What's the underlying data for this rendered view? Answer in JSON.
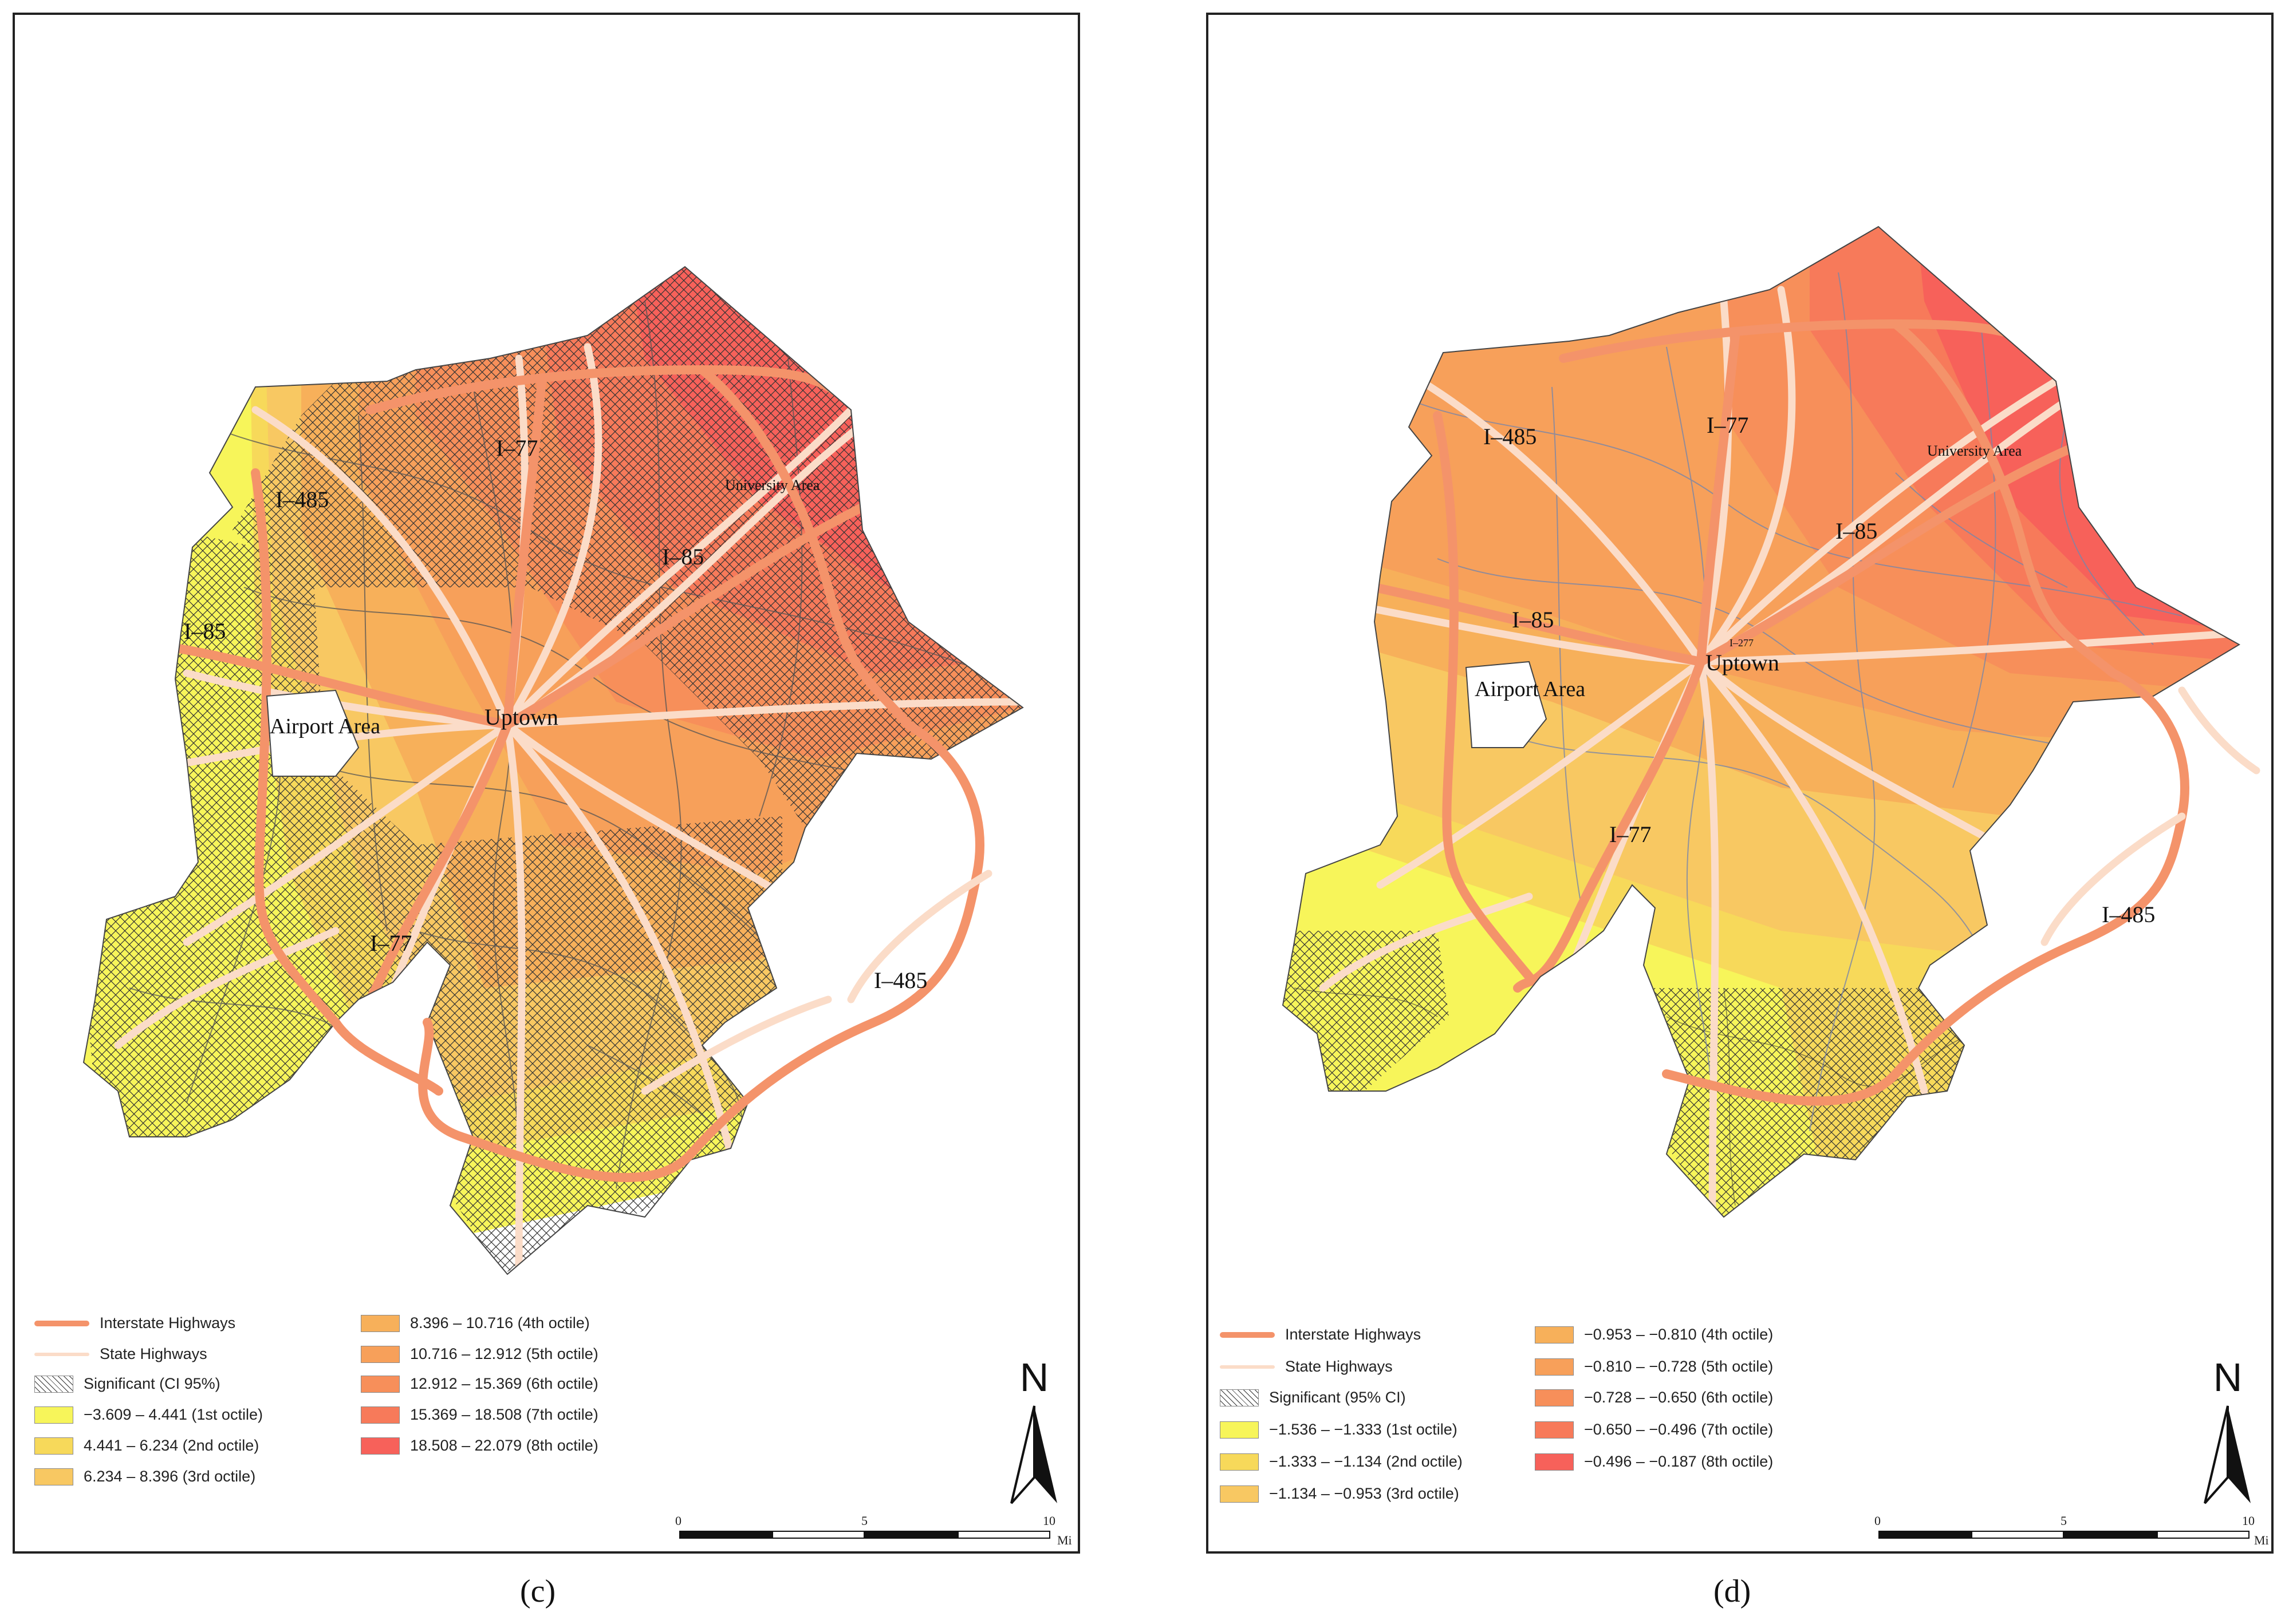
{
  "panels": [
    {
      "caption": "(c)",
      "labels": {
        "i77_top": "I–77",
        "i485_top": "I–485",
        "i85_mid": "I–85",
        "i85_west": "I–85",
        "university": "University Area",
        "uptown": "Uptown",
        "airport": "Airport Area",
        "i77_south": "I–77",
        "i485_south": "I–485"
      },
      "legend": {
        "interstate": "Interstate Highways",
        "state": "State Highways",
        "significant": "Significant (CI 95%)",
        "classes": [
          "−3.609 – 4.441 (1st octile)",
          "4.441 – 6.234 (2nd octile)",
          "6.234 – 8.396 (3rd octile)",
          "8.396 – 10.716 (4th octile)",
          "10.716 – 12.912 (5th octile)",
          "12.912 – 15.369 (6th octile)",
          "15.369 – 18.508 (7th octile)",
          "18.508 – 22.079 (8th octile)"
        ]
      },
      "north_label": "N",
      "scale": {
        "ticks": [
          "0",
          "5",
          "10"
        ],
        "unit": "Mi"
      }
    },
    {
      "caption": "(d)",
      "labels": {
        "i77_top": "I–77",
        "i485_top": "I–485",
        "i85_mid": "I–85",
        "i85_west": "I–85",
        "university": "University Area",
        "i277": "I–277",
        "uptown": "Uptown",
        "airport": "Airport Area",
        "i77_south": "I–77",
        "i485_south": "I–485"
      },
      "legend": {
        "interstate": "Interstate Highways",
        "state": "State Highways",
        "significant": "Significant (95% CI)",
        "classes": [
          "−1.536 – −1.333 (1st octile)",
          "−1.333 – −1.134 (2nd octile)",
          "−1.134 – −0.953 (3rd octile)",
          "−0.953 – −0.810 (4th octile)",
          "−0.810 – −0.728 (5th octile)",
          "−0.728 – −0.650 (6th octile)",
          "−0.650 – −0.496 (7th octile)",
          "−0.496 – −0.187 (8th octile)"
        ]
      },
      "north_label": "N",
      "scale": {
        "ticks": [
          "0",
          "5",
          "10"
        ],
        "unit": "Mi"
      }
    }
  ],
  "colors": {
    "octiles": [
      "#f7f55a",
      "#f7d95a",
      "#f8c862",
      "#f7b05a",
      "#f7a05a",
      "#f78f5a",
      "#f77a5a",
      "#f7615a"
    ],
    "interstate": "#f4936a",
    "state": "#fbdcc8",
    "boundary": "#555555"
  }
}
